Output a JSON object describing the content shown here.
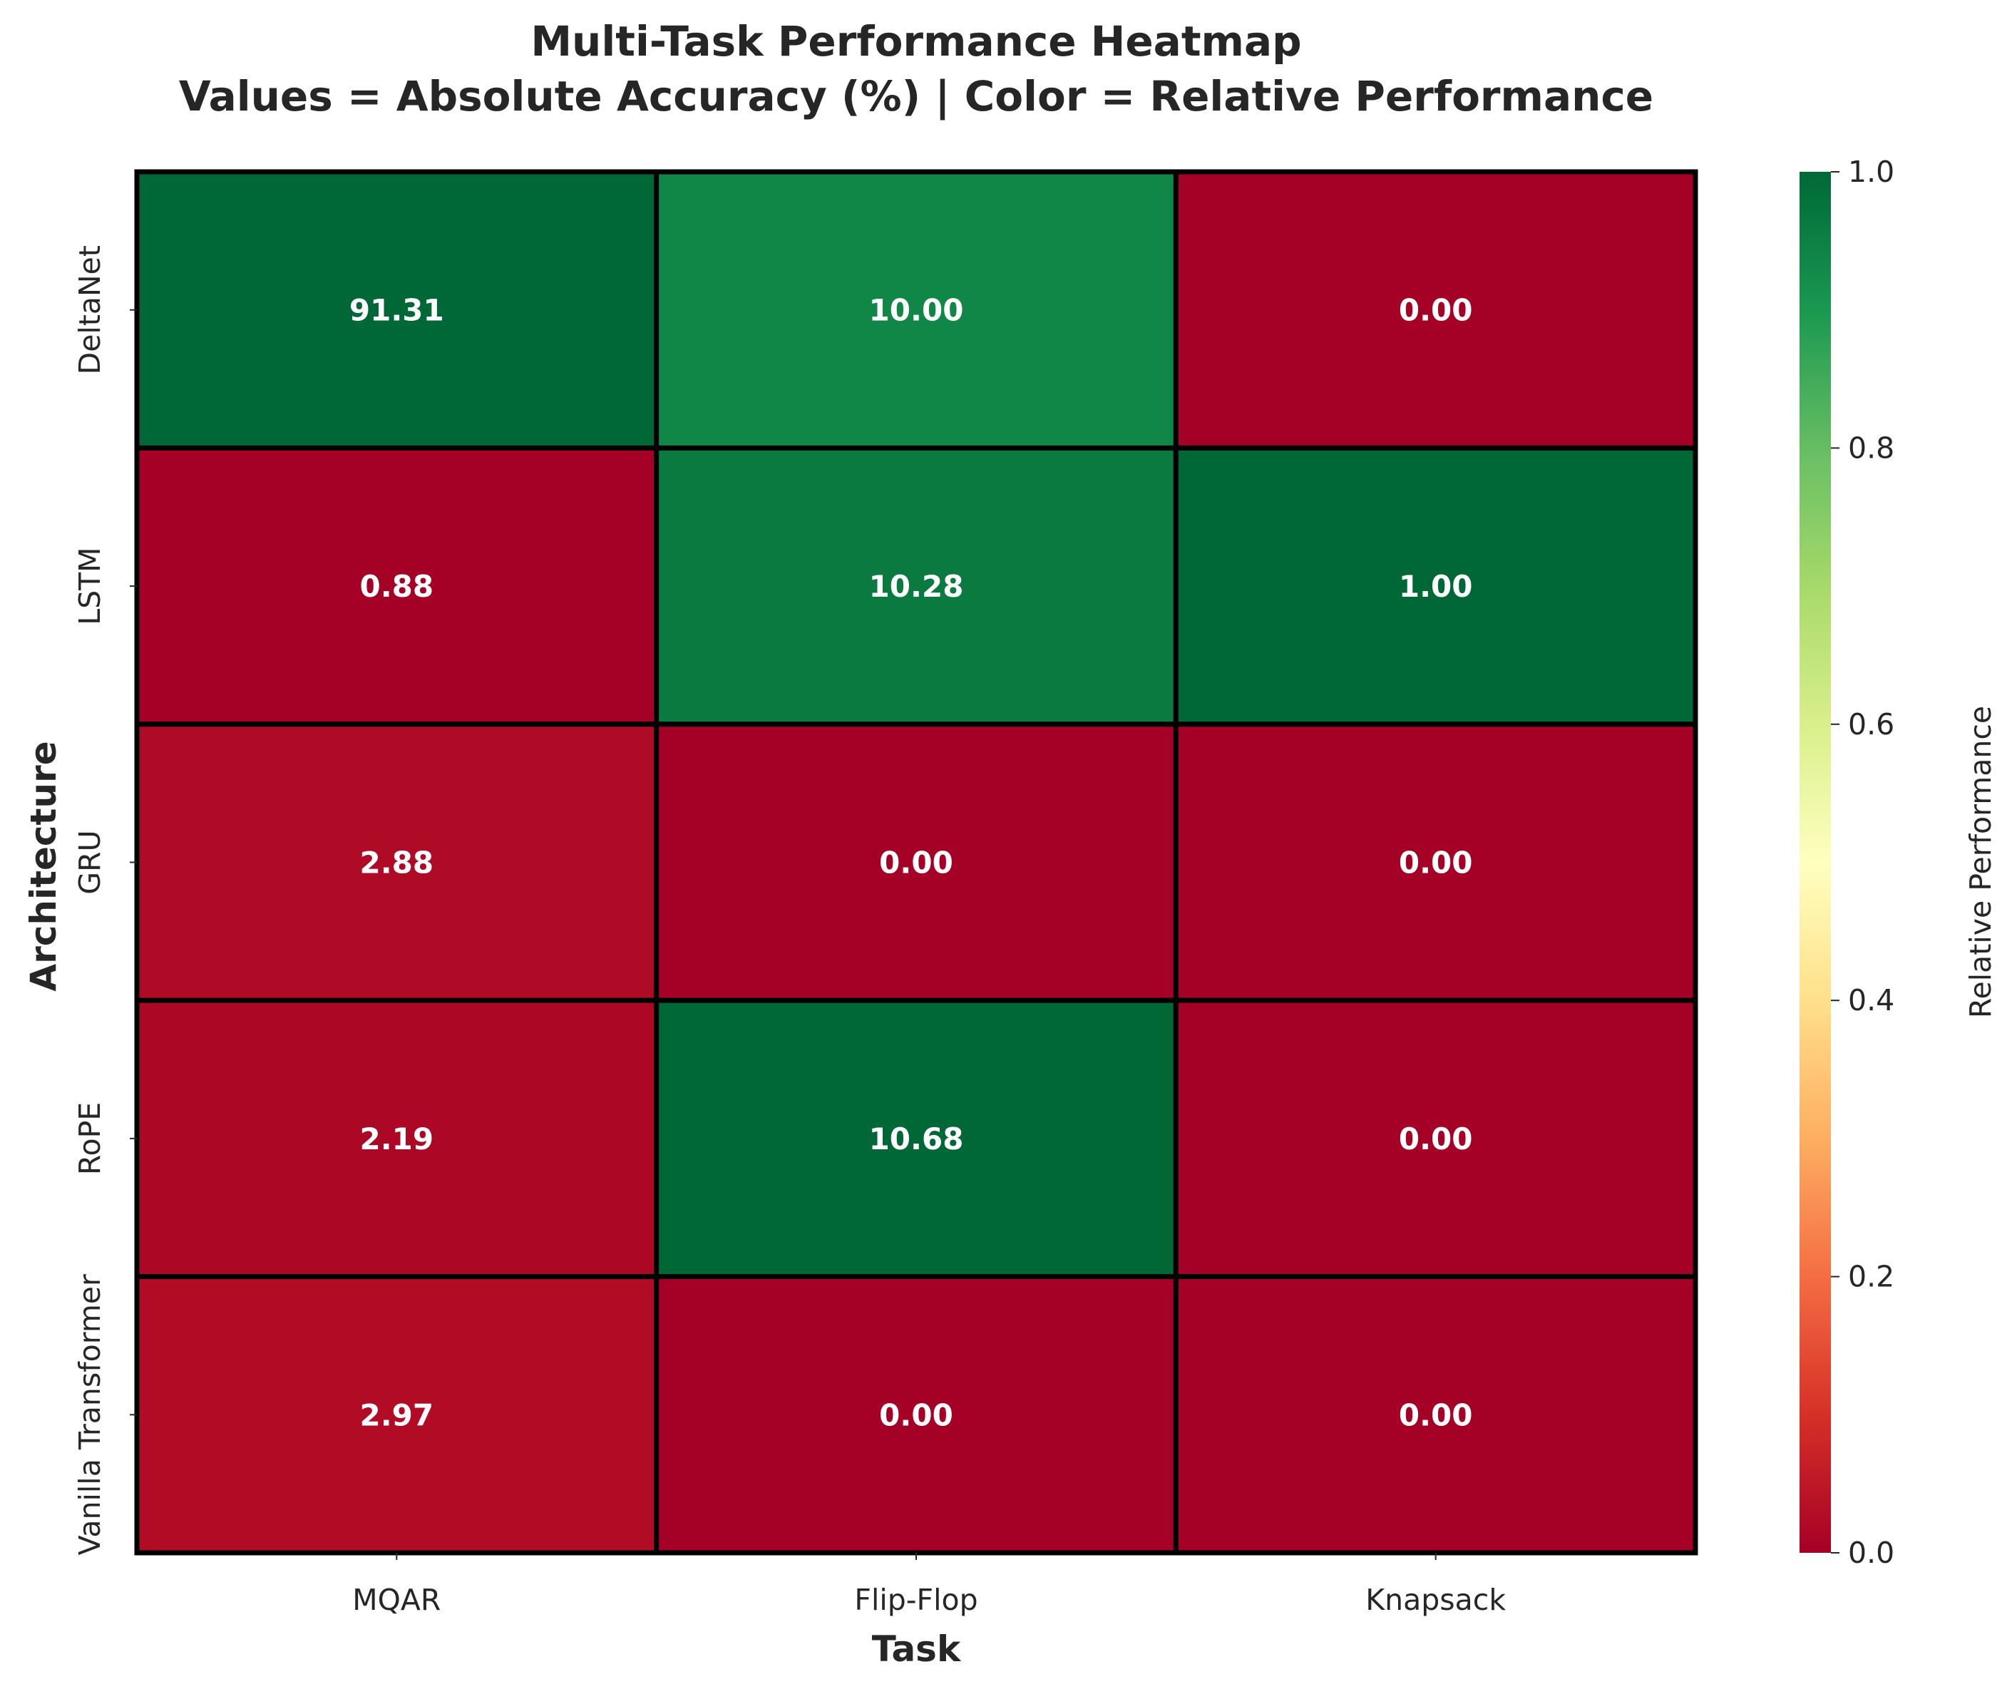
{
  "chart_data": {
    "type": "heatmap",
    "title": "Multi-Task Performance Heatmap",
    "subtitle": "Values = Absolute Accuracy (%) | Color = Relative Performance",
    "xlabel": "Task",
    "ylabel": "Architecture",
    "x_categories": [
      "MQAR",
      "Flip-Flop",
      "Knapsack"
    ],
    "y_categories": [
      "DeltaNet",
      "LSTM",
      "GRU",
      "RoPE",
      "Vanilla Transformer"
    ],
    "values": [
      [
        "91.31",
        "10.00",
        "0.00"
      ],
      [
        "0.88",
        "10.28",
        "1.00"
      ],
      [
        "2.88",
        "0.00",
        "0.00"
      ],
      [
        "2.19",
        "10.68",
        "0.00"
      ],
      [
        "2.97",
        "0.00",
        "0.00"
      ]
    ],
    "relative": [
      [
        1.0,
        0.936,
        0.0
      ],
      [
        0.0,
        0.963,
        1.0
      ],
      [
        0.022,
        0.0,
        0.0
      ],
      [
        0.015,
        1.0,
        0.0
      ],
      [
        0.023,
        0.0,
        0.0
      ]
    ],
    "colorbar": {
      "label": "Relative Performance",
      "range": [
        0,
        1
      ],
      "ticks": [
        "0.0",
        "0.2",
        "0.4",
        "0.6",
        "0.8",
        "1.0"
      ],
      "colormap": "RdYlGn"
    },
    "cell_border_color": "#000000",
    "text_color": "#ffffff"
  }
}
